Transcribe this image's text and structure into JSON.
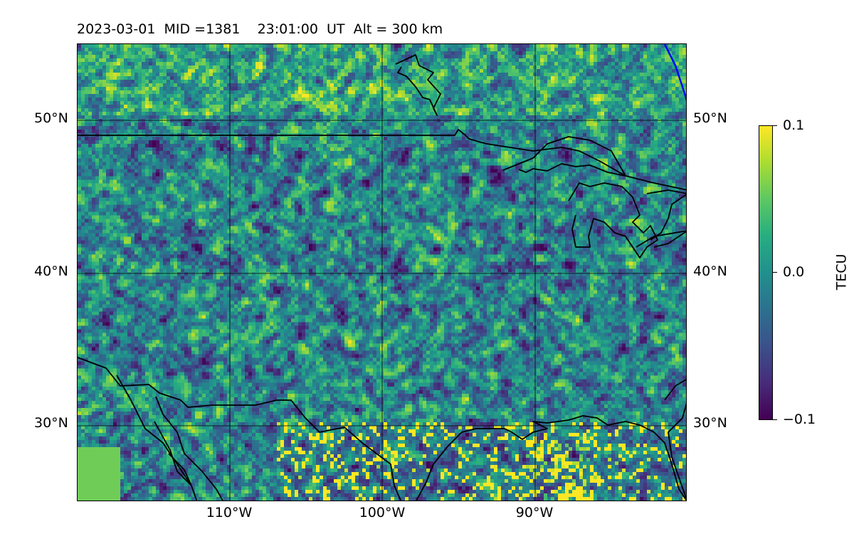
{
  "title": "2023-03-01  MID =1381    23:01:00  UT  Alt = 300 km",
  "map": {
    "lon_range": [
      -120,
      -80
    ],
    "lat_range": [
      25,
      55
    ],
    "gridlines_lon": [
      -110,
      -100,
      -90
    ],
    "gridlines_lat": [
      30,
      40,
      50
    ],
    "lat_labels": [
      "50°N",
      "40°N",
      "30°N"
    ],
    "lon_labels": [
      "110°W",
      "100°W",
      "90°W"
    ],
    "grid": true,
    "coastline_color": "#000000",
    "boundary_color": "#0000ff"
  },
  "colorbar": {
    "label": "TECU",
    "min": -0.1,
    "max": 0.1,
    "ticks": [
      "0.1",
      "0.0",
      "−0.1"
    ],
    "colormap": "viridis"
  }
}
